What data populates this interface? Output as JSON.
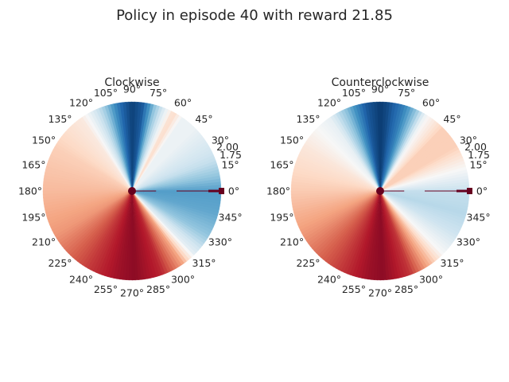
{
  "figure": {
    "title": "Policy in episode 40 with reward 21.85"
  },
  "chart_data": [
    {
      "type": "heatmap",
      "projection": "polar",
      "title": "Clockwise",
      "theta_tick_labels": [
        "0°",
        "15°",
        "30°",
        "45°",
        "60°",
        "75°",
        "90°",
        "105°",
        "120°",
        "135°",
        "150°",
        "165°",
        "180°",
        "195°",
        "210°",
        "225°",
        "240°",
        "255°",
        "270°",
        "285°",
        "300°",
        "315°",
        "330°",
        "345°"
      ],
      "r_tick_labels": [
        "2.00",
        "1.75"
      ],
      "colormap": "RdBu",
      "angular_profile": [
        {
          "deg": 0,
          "v": 0.22
        },
        {
          "deg": 20,
          "v": 0.38
        },
        {
          "deg": 45,
          "v": 0.47
        },
        {
          "deg": 55,
          "v": 0.47
        },
        {
          "deg": 62,
          "v": 0.6
        },
        {
          "deg": 67,
          "v": 0.47
        },
        {
          "deg": 75,
          "v": 0.3
        },
        {
          "deg": 83,
          "v": 0.08
        },
        {
          "deg": 90,
          "v": 0.03
        },
        {
          "deg": 97,
          "v": 0.1
        },
        {
          "deg": 110,
          "v": 0.35
        },
        {
          "deg": 125,
          "v": 0.55
        },
        {
          "deg": 150,
          "v": 0.62
        },
        {
          "deg": 180,
          "v": 0.66
        },
        {
          "deg": 210,
          "v": 0.72
        },
        {
          "deg": 240,
          "v": 0.85
        },
        {
          "deg": 262,
          "v": 0.93
        },
        {
          "deg": 272,
          "v": 0.95
        },
        {
          "deg": 290,
          "v": 0.88
        },
        {
          "deg": 305,
          "v": 0.7
        },
        {
          "deg": 315,
          "v": 0.45
        },
        {
          "deg": 330,
          "v": 0.3
        },
        {
          "deg": 345,
          "v": 0.24
        },
        {
          "deg": 360,
          "v": 0.22
        }
      ],
      "trajectory": {
        "theta_deg": 0,
        "r_start": 0.5,
        "r_end": 1.0,
        "color": "#67001f"
      },
      "current_state": {
        "theta_deg": 0,
        "r": 1.0,
        "color": "#67001f"
      },
      "center_marker": {
        "color": "#67001f"
      }
    },
    {
      "type": "heatmap",
      "projection": "polar",
      "title": "Counterclockwise",
      "theta_tick_labels": [
        "0°",
        "15°",
        "30°",
        "45°",
        "60°",
        "75°",
        "90°",
        "105°",
        "120°",
        "135°",
        "150°",
        "165°",
        "180°",
        "195°",
        "210°",
        "225°",
        "240°",
        "255°",
        "270°",
        "285°",
        "300°",
        "315°",
        "330°",
        "345°"
      ],
      "r_tick_labels": [
        "2.00",
        "1.75"
      ],
      "colormap": "RdBu",
      "angular_profile": [
        {
          "deg": 0,
          "v": 0.38
        },
        {
          "deg": 15,
          "v": 0.5
        },
        {
          "deg": 30,
          "v": 0.62
        },
        {
          "deg": 45,
          "v": 0.62
        },
        {
          "deg": 58,
          "v": 0.5
        },
        {
          "deg": 66,
          "v": 0.3
        },
        {
          "deg": 75,
          "v": 0.15
        },
        {
          "deg": 85,
          "v": 0.05
        },
        {
          "deg": 90,
          "v": 0.02
        },
        {
          "deg": 100,
          "v": 0.08
        },
        {
          "deg": 112,
          "v": 0.28
        },
        {
          "deg": 125,
          "v": 0.46
        },
        {
          "deg": 150,
          "v": 0.56
        },
        {
          "deg": 180,
          "v": 0.63
        },
        {
          "deg": 210,
          "v": 0.72
        },
        {
          "deg": 240,
          "v": 0.84
        },
        {
          "deg": 262,
          "v": 0.93
        },
        {
          "deg": 272,
          "v": 0.95
        },
        {
          "deg": 290,
          "v": 0.86
        },
        {
          "deg": 305,
          "v": 0.66
        },
        {
          "deg": 315,
          "v": 0.5
        },
        {
          "deg": 330,
          "v": 0.4
        },
        {
          "deg": 345,
          "v": 0.36
        },
        {
          "deg": 360,
          "v": 0.38
        }
      ],
      "trajectory": {
        "theta_deg": 0,
        "r_start": 0.5,
        "r_end": 1.0,
        "color": "#67001f"
      },
      "current_state": {
        "theta_deg": 0,
        "r": 1.0,
        "color": "#67001f"
      },
      "center_marker": {
        "color": "#67001f"
      }
    }
  ]
}
